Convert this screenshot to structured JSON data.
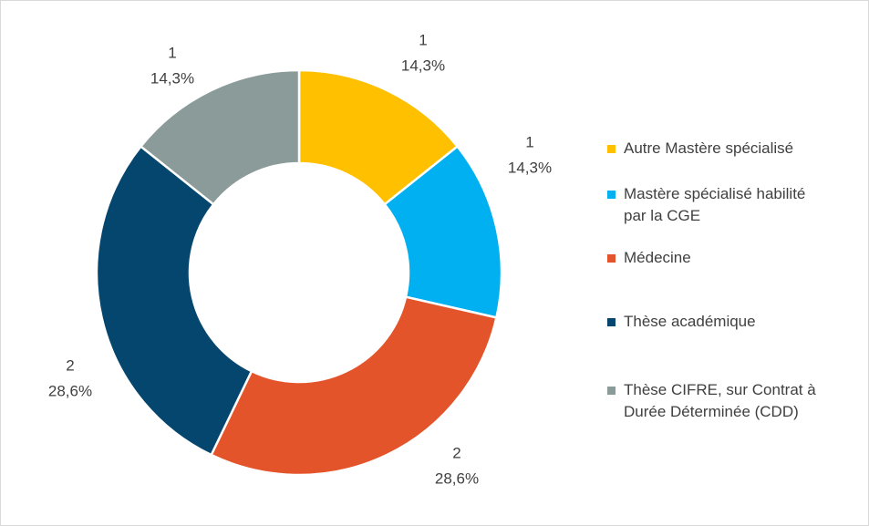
{
  "chart_data": {
    "type": "donut",
    "categories": [
      "Autre Mastère spécialisé",
      "Mastère spécialisé habilité par la CGE",
      "Médecine",
      "Thèse académique",
      "Thèse CIFRE, sur Contrat à Durée Déterminée (CDD)"
    ],
    "values": [
      1,
      1,
      2,
      2,
      1
    ],
    "percentages": [
      14.3,
      14.3,
      28.6,
      28.6,
      14.3
    ],
    "percentage_labels": [
      "14,3%",
      "14,3%",
      "28,6%",
      "28,6%",
      "14,3%"
    ],
    "colors": [
      "#ffc000",
      "#00b0f0",
      "#e4542a",
      "#05466f",
      "#8a9b9a"
    ],
    "legend": "right"
  }
}
